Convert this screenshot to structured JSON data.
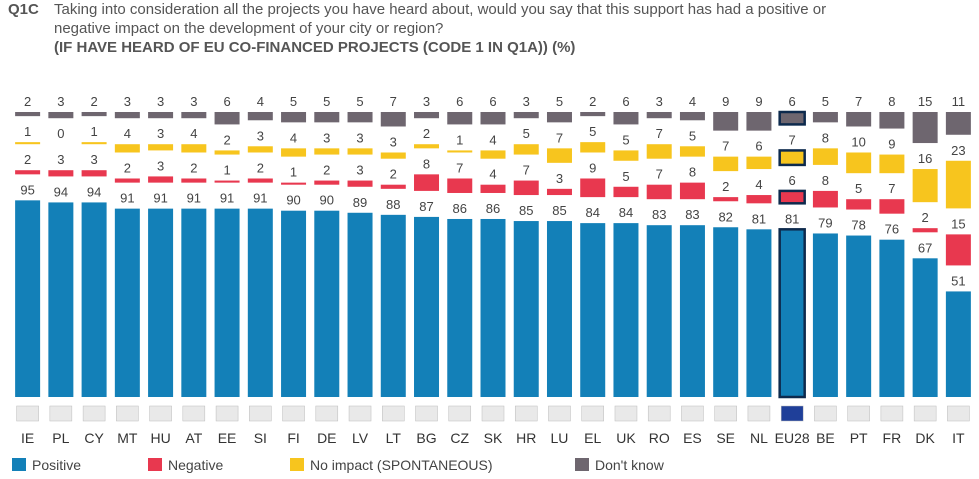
{
  "chart_data": {
    "type": "bar",
    "code": "Q1C",
    "title": "Taking into consideration all the projects you have heard about, would you say that this support has had a positive or",
    "title_line2": "negative impact on the development of your city or region?",
    "subtitle": "(IF HAVE HEARD OF EU CO-FINANCED PROJECTS (CODE 1 IN Q1A))  (%)",
    "categories": [
      "IE",
      "PL",
      "CY",
      "MT",
      "HU",
      "AT",
      "EE",
      "SI",
      "FI",
      "DE",
      "LV",
      "LT",
      "BG",
      "CZ",
      "SK",
      "HR",
      "LU",
      "EL",
      "UK",
      "RO",
      "ES",
      "SE",
      "NL",
      "EU28",
      "BE",
      "PT",
      "FR",
      "DK",
      "IT"
    ],
    "highlight": "EU28",
    "series": [
      {
        "name": "Positive",
        "color": "#1380b8",
        "values": [
          95,
          94,
          94,
          91,
          91,
          91,
          91,
          91,
          90,
          90,
          89,
          88,
          87,
          86,
          86,
          85,
          85,
          84,
          84,
          83,
          83,
          82,
          81,
          81,
          79,
          78,
          76,
          67,
          51
        ]
      },
      {
        "name": "Negative",
        "color": "#e8384f",
        "values": [
          2,
          3,
          3,
          2,
          3,
          2,
          1,
          2,
          1,
          2,
          3,
          2,
          8,
          7,
          4,
          7,
          3,
          9,
          5,
          7,
          8,
          2,
          4,
          6,
          8,
          5,
          7,
          2,
          15
        ]
      },
      {
        "name": "No impact (SPONTANEOUS)",
        "color": "#f7c51e",
        "values": [
          1,
          0,
          1,
          4,
          3,
          4,
          2,
          3,
          4,
          3,
          3,
          3,
          2,
          1,
          4,
          5,
          7,
          5,
          5,
          7,
          5,
          7,
          6,
          7,
          8,
          10,
          9,
          16,
          23
        ]
      },
      {
        "name": "Don't know",
        "color": "#6e666f",
        "values": [
          2,
          3,
          2,
          3,
          3,
          3,
          6,
          4,
          5,
          5,
          5,
          7,
          3,
          6,
          6,
          3,
          5,
          2,
          6,
          3,
          4,
          9,
          9,
          6,
          5,
          7,
          8,
          15,
          11
        ]
      }
    ]
  }
}
